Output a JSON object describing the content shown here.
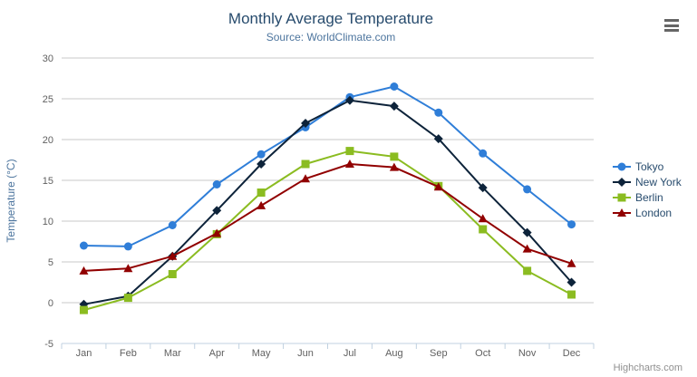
{
  "chart_data": {
    "type": "line",
    "title": "Monthly Average Temperature",
    "subtitle": "Source: WorldClimate.com",
    "categories": [
      "Jan",
      "Feb",
      "Mar",
      "Apr",
      "May",
      "Jun",
      "Jul",
      "Aug",
      "Sep",
      "Oct",
      "Nov",
      "Dec"
    ],
    "xlabel": "",
    "ylabel": "Temperature (°C)",
    "ylim": [
      -5,
      30
    ],
    "yticks": [
      -5,
      0,
      5,
      10,
      15,
      20,
      25,
      30
    ],
    "grid": true,
    "legend_position": "right",
    "series": [
      {
        "name": "Tokyo",
        "color": "#2f7ed8",
        "marker": "circle",
        "values": [
          7.0,
          6.9,
          9.5,
          14.5,
          18.2,
          21.5,
          25.2,
          26.5,
          23.3,
          18.3,
          13.9,
          9.6
        ]
      },
      {
        "name": "New York",
        "color": "#0d233a",
        "marker": "diamond",
        "values": [
          -0.2,
          0.8,
          5.7,
          11.3,
          17.0,
          22.0,
          24.8,
          24.1,
          20.1,
          14.1,
          8.6,
          2.5
        ]
      },
      {
        "name": "Berlin",
        "color": "#8bbc21",
        "marker": "square",
        "values": [
          -0.9,
          0.6,
          3.5,
          8.4,
          13.5,
          17.0,
          18.6,
          17.9,
          14.3,
          9.0,
          3.9,
          1.0
        ]
      },
      {
        "name": "London",
        "color": "#910000",
        "marker": "triangle",
        "values": [
          3.9,
          4.2,
          5.7,
          8.5,
          11.9,
          15.2,
          17.0,
          16.6,
          14.2,
          10.3,
          6.6,
          4.8
        ]
      }
    ],
    "style": {
      "background_color": "#ffffff",
      "title_color": "#274b6d",
      "subtitle_color": "#4d759e",
      "axis_title_color": "#4d759e",
      "axis_label_color": "#606060",
      "grid_line_color": "#c8c8c8",
      "axis_line_color": "#c0d0e0",
      "legend_text_color": "#274b6d",
      "credits_color": "#909090",
      "menu_icon_color": "#666666"
    }
  },
  "header": {
    "context_menu_icon": "hamburger-icon"
  },
  "credits": {
    "label": "Highcharts.com"
  }
}
